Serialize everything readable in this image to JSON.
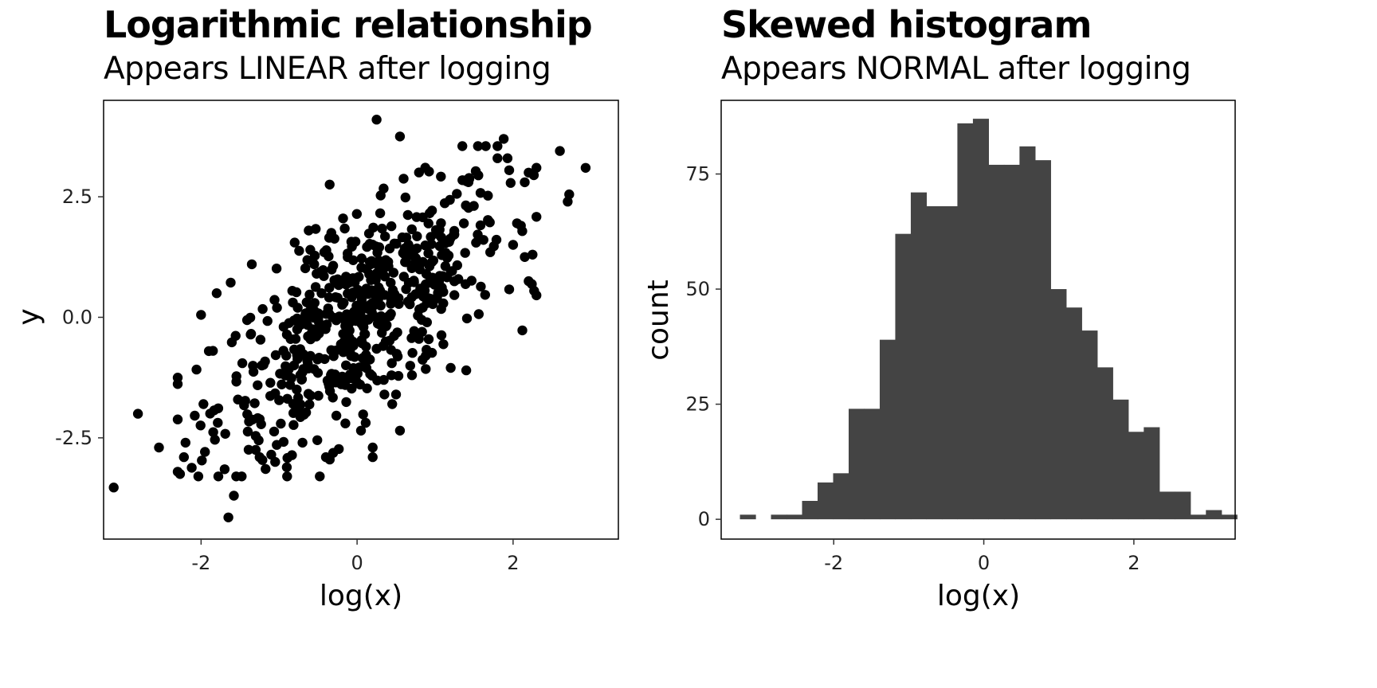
{
  "chart_data": [
    {
      "type": "scatter",
      "title": "Logarithmic relationship",
      "subtitle": "Appears LINEAR after logging",
      "xlabel": "log(x)",
      "ylabel": "y",
      "xlim": [
        -3.25,
        3.35
      ],
      "ylim": [
        -4.6,
        4.5
      ],
      "xticks": [
        -2,
        0,
        2
      ],
      "xtick_labels": [
        "-2",
        "0",
        "2"
      ],
      "yticks": [
        -2.5,
        0,
        2.5
      ],
      "ytick_labels": [
        "-2.5",
        "0.0",
        "2.5"
      ],
      "grid": false,
      "color": "#000000",
      "series": [
        {
          "points": [
            [
              -3.12,
              -3.53
            ],
            [
              -2.81,
              -2.0
            ],
            [
              -2.54,
              -2.7
            ],
            [
              -2.27,
              -3.25
            ],
            [
              -2.22,
              -2.9
            ],
            [
              -2.2,
              -2.6
            ],
            [
              -2.12,
              -3.12
            ],
            [
              -2.0,
              0.05
            ],
            [
              -1.97,
              -1.8
            ],
            [
              -1.65,
              -4.15
            ],
            [
              -1.58,
              -3.7
            ],
            [
              -1.55,
              -3.3
            ],
            [
              -1.62,
              0.72
            ],
            [
              -1.8,
              0.5
            ],
            [
              -1.9,
              -0.7
            ],
            [
              -1.35,
              1.1
            ],
            [
              -0.8,
              1.55
            ],
            [
              -0.62,
              1.8
            ],
            [
              -0.6,
              1.4
            ],
            [
              -0.42,
              1.35
            ],
            [
              -0.55,
              1.1
            ],
            [
              -0.33,
              1.75
            ],
            [
              -0.18,
              2.05
            ],
            [
              0.25,
              4.1
            ],
            [
              0.55,
              3.75
            ],
            [
              1.35,
              3.55
            ],
            [
              1.55,
              3.55
            ],
            [
              1.65,
              3.55
            ],
            [
              1.8,
              3.55
            ],
            [
              1.88,
              3.7
            ],
            [
              1.8,
              3.3
            ],
            [
              1.95,
              3.05
            ],
            [
              2.15,
              2.8
            ],
            [
              2.2,
              3.0
            ],
            [
              2.6,
              3.45
            ],
            [
              2.93,
              3.1
            ],
            [
              2.72,
              2.55
            ],
            [
              2.7,
              2.4
            ],
            [
              2.27,
              0.55
            ],
            [
              2.2,
              0.75
            ],
            [
              1.95,
              0.58
            ],
            [
              2.25,
              1.3
            ],
            [
              2.15,
              1.25
            ],
            [
              2.1,
              1.9
            ],
            [
              2.05,
              1.95
            ],
            [
              1.2,
              -1.05
            ],
            [
              1.4,
              -1.1
            ],
            [
              0.88,
              -0.8
            ],
            [
              0.2,
              -2.9
            ],
            [
              0.2,
              -2.7
            ],
            [
              0.55,
              -2.35
            ],
            [
              -0.4,
              -2.9
            ],
            [
              -0.35,
              -2.95
            ],
            [
              -1.05,
              -3.0
            ],
            [
              -1.1,
              -2.85
            ],
            [
              -1.25,
              -2.9
            ],
            [
              -1.3,
              -2.75
            ],
            [
              -0.7,
              -2.6
            ],
            [
              0.05,
              -2.35
            ],
            [
              -0.15,
              -2.2
            ],
            [
              0.45,
              -1.8
            ],
            [
              0.35,
              -1.6
            ],
            [
              0.5,
              -1.6
            ]
          ],
          "cloud": {
            "n": 560,
            "x_mean": 0.05,
            "x_sd": 0.92,
            "intercept": 0.0,
            "slope": 1.02,
            "resid_sd": 0.95,
            "x_clip": [
              -2.3,
              2.3
            ],
            "y_clip": [
              -3.3,
              3.3
            ]
          }
        }
      ]
    },
    {
      "type": "bar",
      "title": "Skewed histogram",
      "subtitle": "Appears NORMAL after logging",
      "xlabel": "log(x)",
      "ylabel": "count",
      "xlim": [
        -3.5,
        3.35
      ],
      "ylim": [
        -4.3,
        91
      ],
      "xticks": [
        -2,
        0,
        2
      ],
      "xtick_labels": [
        "-2",
        "0",
        "2"
      ],
      "yticks": [
        0,
        25,
        50,
        75
      ],
      "ytick_labels": [
        "0",
        "25",
        "50",
        "75"
      ],
      "grid": false,
      "color": "#444444",
      "bin_start": -3.25,
      "bin_width": 0.207,
      "values": [
        1,
        0,
        1,
        1,
        4,
        8,
        10,
        24,
        24,
        39,
        62,
        71,
        68,
        68,
        86,
        87,
        77,
        77,
        81,
        78,
        50,
        46,
        41,
        33,
        26,
        19,
        20,
        6,
        6,
        1,
        2,
        1
      ]
    }
  ]
}
